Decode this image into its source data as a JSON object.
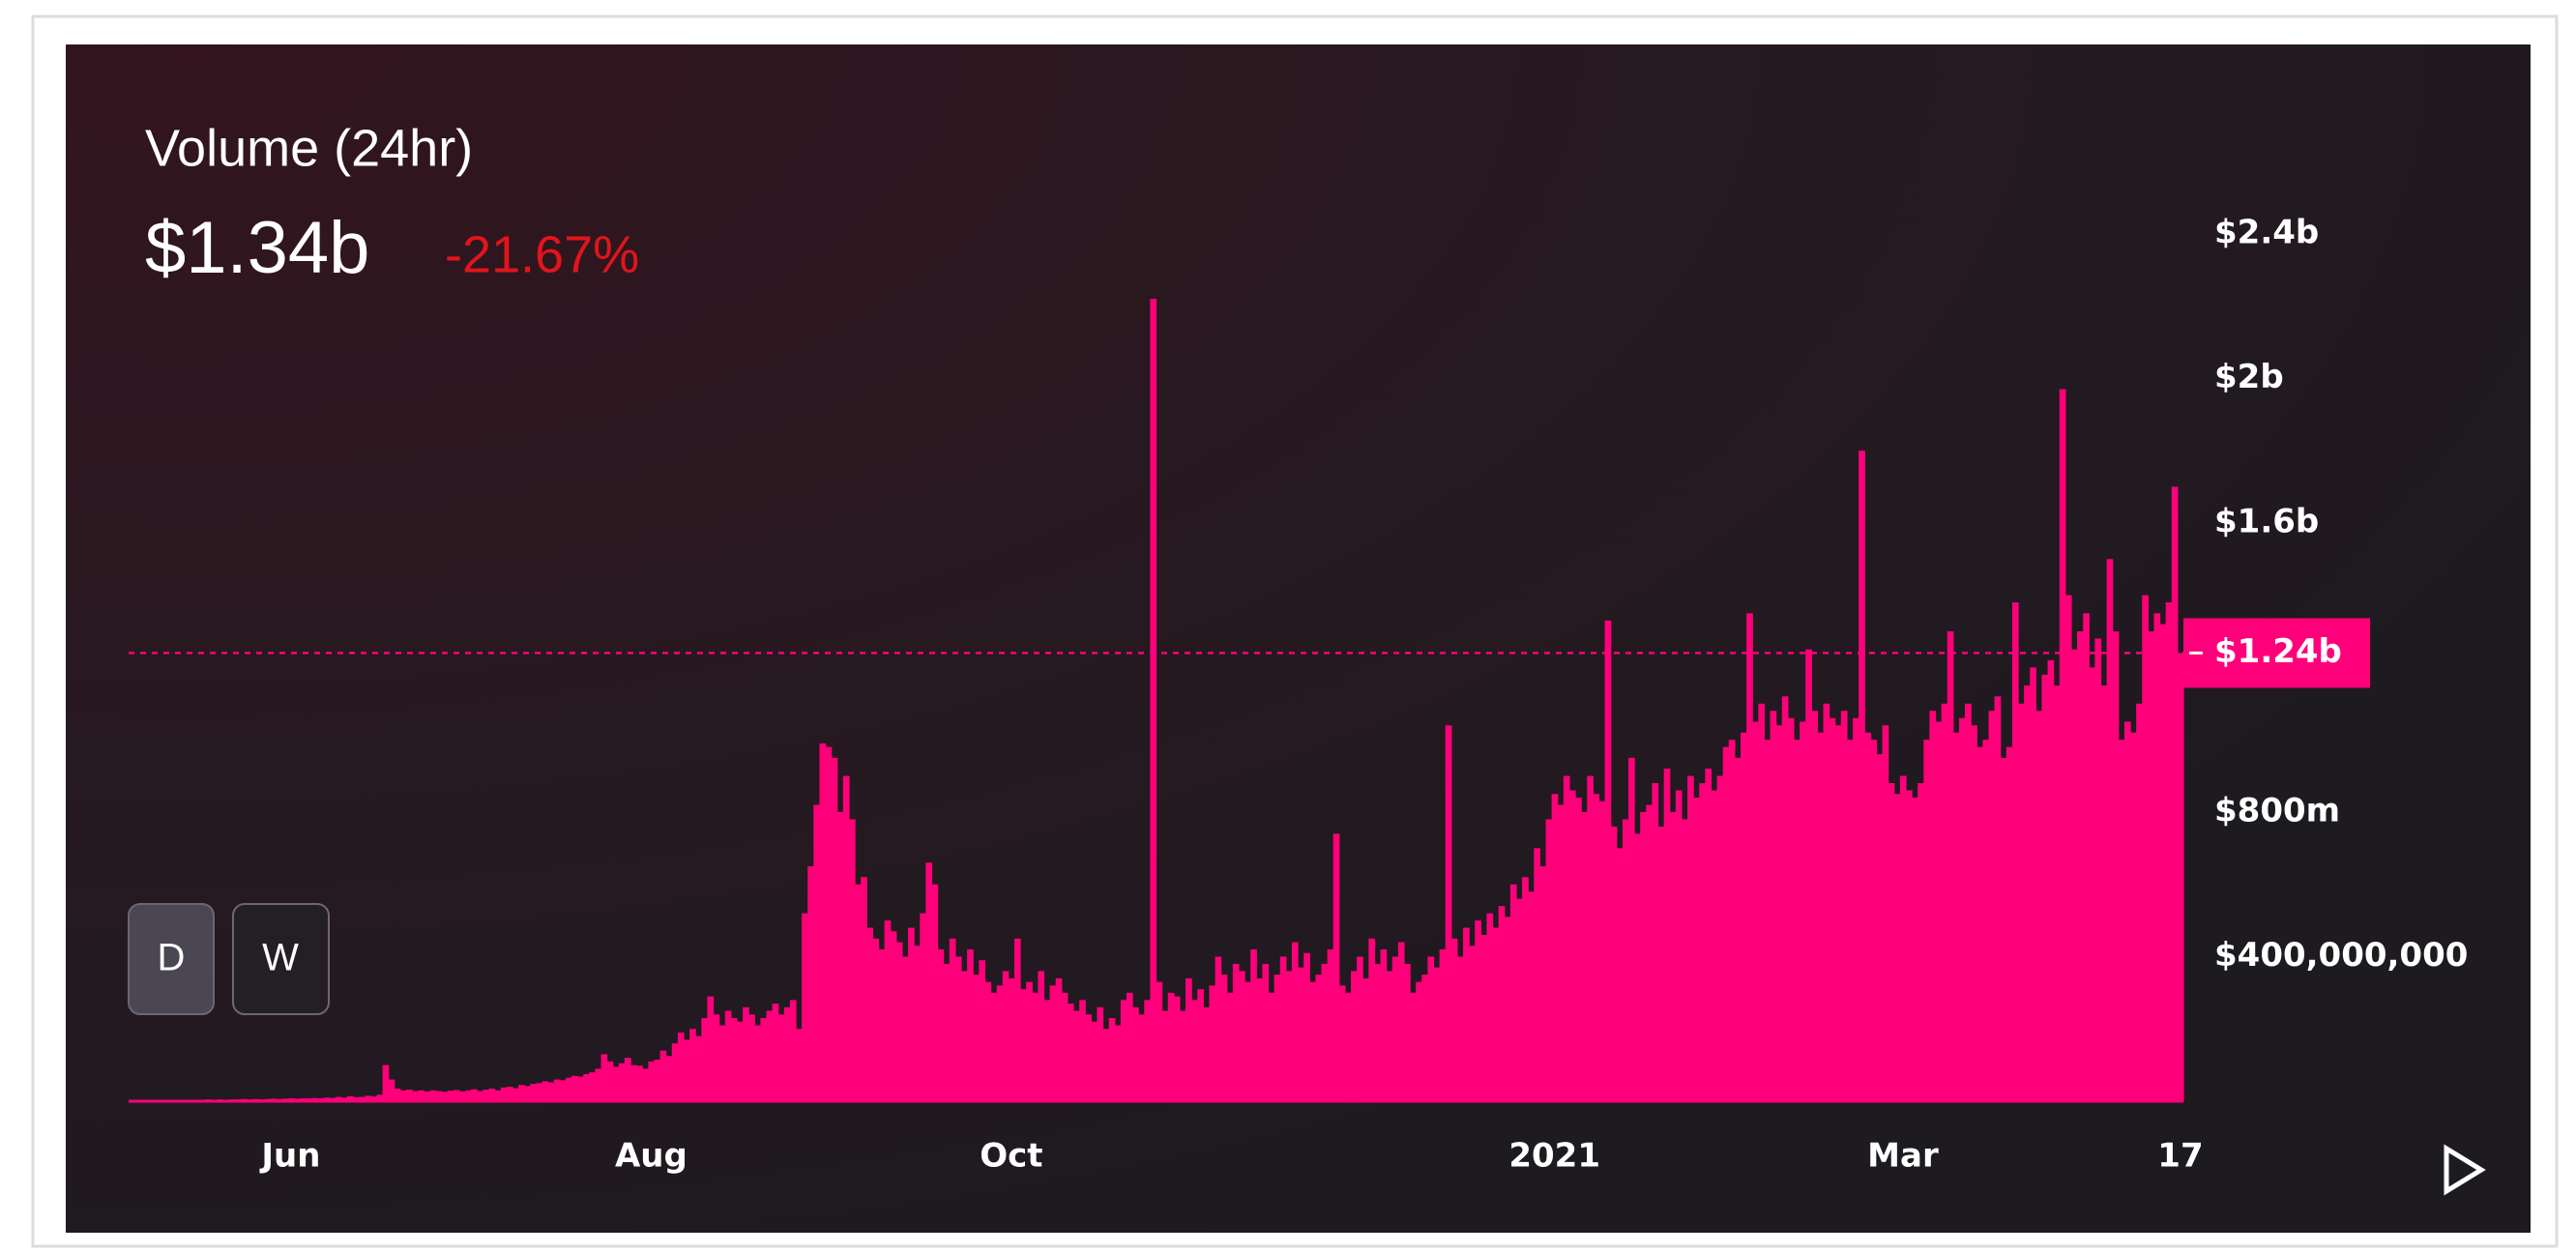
{
  "chart_data": {
    "type": "bar",
    "title": "Volume (24hr)",
    "current_value": "$1.34b",
    "change": "-21.67%",
    "color": "#ff007a",
    "ylim": [
      0,
      2600000000.0
    ],
    "yticks": [
      {
        "value": 400000000.0,
        "label": "$400,000,000"
      },
      {
        "value": 800000000.0,
        "label": "$800m"
      },
      {
        "value": 1600000000.0,
        "label": "$1.6b"
      },
      {
        "value": 2000000000.0,
        "label": "$2b"
      },
      {
        "value": 2400000000.0,
        "label": "$2.4b"
      }
    ],
    "xticks": [
      {
        "value": 27,
        "label": "Jun"
      },
      {
        "value": 88,
        "label": "Aug"
      },
      {
        "value": 149,
        "label": "Oct"
      },
      {
        "value": 241,
        "label": "2021"
      },
      {
        "value": 300,
        "label": "Mar"
      },
      {
        "value": 347,
        "label": "17"
      }
    ],
    "reference_line": {
      "value": 1240000000.0,
      "label": "$1.24b"
    },
    "buttons": [
      "D",
      "W"
    ],
    "values": [
      2000000.0,
      2000000.0,
      3000000.0,
      2000000.0,
      3000000.0,
      3000000.0,
      2000000.0,
      3000000.0,
      4000000.0,
      3000000.0,
      4000000.0,
      3000000.0,
      4000000.0,
      5000000.0,
      4000000.0,
      5000000.0,
      4000000.0,
      5000000.0,
      5000000.0,
      6000000.0,
      5000000.0,
      6000000.0,
      5000000.0,
      6000000.0,
      7000000.0,
      6000000.0,
      7000000.0,
      8000000.0,
      7000000.0,
      8000000.0,
      8000000.0,
      9000000.0,
      8000000.0,
      10000000.0,
      9000000.0,
      12000000.0,
      10000000.0,
      14000000.0,
      11000000.0,
      12000000.0,
      15000000.0,
      13000000.0,
      18000000.0,
      100000000.0,
      60000000.0,
      35000000.0,
      30000000.0,
      32000000.0,
      28000000.0,
      30000000.0,
      27000000.0,
      30000000.0,
      28000000.0,
      26000000.0,
      29000000.0,
      31000000.0,
      27000000.0,
      30000000.0,
      33000000.0,
      28000000.0,
      32000000.0,
      35000000.0,
      30000000.0,
      38000000.0,
      40000000.0,
      36000000.0,
      45000000.0,
      42000000.0,
      48000000.0,
      50000000.0,
      55000000.0,
      52000000.0,
      60000000.0,
      58000000.0,
      65000000.0,
      70000000.0,
      68000000.0,
      75000000.0,
      80000000.0,
      90000000.0,
      130000000.0,
      110000000.0,
      95000000.0,
      105000000.0,
      120000000.0,
      100000000.0,
      98000000.0,
      90000000.0,
      110000000.0,
      115000000.0,
      140000000.0,
      125000000.0,
      160000000.0,
      190000000.0,
      170000000.0,
      200000000.0,
      180000000.0,
      230000000.0,
      290000000.0,
      240000000.0,
      210000000.0,
      250000000.0,
      230000000.0,
      220000000.0,
      260000000.0,
      240000000.0,
      210000000.0,
      230000000.0,
      250000000.0,
      270000000.0,
      240000000.0,
      260000000.0,
      280000000.0,
      200000000.0,
      520000000.0,
      650000000.0,
      820000000.0,
      990000000.0,
      980000000.0,
      950000000.0,
      800000000.0,
      900000000.0,
      780000000.0,
      600000000.0,
      620000000.0,
      480000000.0,
      450000000.0,
      420000000.0,
      500000000.0,
      470000000.0,
      440000000.0,
      400000000.0,
      480000000.0,
      430000000.0,
      520000000.0,
      660000000.0,
      600000000.0,
      420000000.0,
      380000000.0,
      450000000.0,
      400000000.0,
      360000000.0,
      420000000.0,
      350000000.0,
      390000000.0,
      330000000.0,
      300000000.0,
      320000000.0,
      360000000.0,
      340000000.0,
      450000000.0,
      310000000.0,
      330000000.0,
      300000000.0,
      360000000.0,
      280000000.0,
      320000000.0,
      340000000.0,
      300000000.0,
      270000000.0,
      250000000.0,
      280000000.0,
      240000000.0,
      220000000.0,
      260000000.0,
      200000000.0,
      230000000.0,
      210000000.0,
      280000000.0,
      300000000.0,
      260000000.0,
      240000000.0,
      280000000.0,
      2220000000.0,
      330000000.0,
      250000000.0,
      300000000.0,
      290000000.0,
      250000000.0,
      340000000.0,
      280000000.0,
      310000000.0,
      260000000.0,
      320000000.0,
      400000000.0,
      350000000.0,
      300000000.0,
      380000000.0,
      360000000.0,
      330000000.0,
      420000000.0,
      340000000.0,
      380000000.0,
      300000000.0,
      350000000.0,
      400000000.0,
      360000000.0,
      440000000.0,
      370000000.0,
      410000000.0,
      330000000.0,
      350000000.0,
      380000000.0,
      420000000.0,
      740000000.0,
      320000000.0,
      300000000.0,
      360000000.0,
      400000000.0,
      340000000.0,
      450000000.0,
      380000000.0,
      420000000.0,
      360000000.0,
      400000000.0,
      440000000.0,
      380000000.0,
      300000000.0,
      330000000.0,
      350000000.0,
      400000000.0,
      370000000.0,
      420000000.0,
      1040000000.0,
      450000000.0,
      400000000.0,
      480000000.0,
      430000000.0,
      500000000.0,
      460000000.0,
      520000000.0,
      480000000.0,
      540000000.0,
      510000000.0,
      600000000.0,
      560000000.0,
      620000000.0,
      580000000.0,
      700000000.0,
      650000000.0,
      780000000.0,
      850000000.0,
      820000000.0,
      900000000.0,
      860000000.0,
      840000000.0,
      800000000.0,
      900000000.0,
      850000000.0,
      830000000.0,
      1330000000.0,
      760000000.0,
      700000000.0,
      780000000.0,
      950000000.0,
      740000000.0,
      800000000.0,
      820000000.0,
      880000000.0,
      760000000.0,
      920000000.0,
      800000000.0,
      860000000.0,
      780000000.0,
      900000000.0,
      840000000.0,
      880000000.0,
      920000000.0,
      860000000.0,
      900000000.0,
      980000000.0,
      1000000000.0,
      950000000.0,
      1020000000.0,
      1350000000.0,
      1050000000.0,
      1100000000.0,
      1000000000.0,
      1080000000.0,
      1040000000.0,
      1120000000.0,
      1060000000.0,
      1000000000.0,
      1050000000.0,
      1250000000.0,
      1080000000.0,
      1020000000.0,
      1100000000.0,
      1060000000.0,
      1040000000.0,
      1080000000.0,
      1000000000.0,
      1060000000.0,
      1800000000.0,
      1020000000.0,
      1000000000.0,
      960000000.0,
      1040000000.0,
      880000000.0,
      850000000.0,
      900000000.0,
      860000000.0,
      840000000.0,
      880000000.0,
      1000000000.0,
      1080000000.0,
      1050000000.0,
      1100000000.0,
      1300000000.0,
      1020000000.0,
      1060000000.0,
      1100000000.0,
      1040000000.0,
      980000000.0,
      1000000000.0,
      1080000000.0,
      1120000000.0,
      950000000.0,
      980000000.0,
      1380000000.0,
      1100000000.0,
      1150000000.0,
      1200000000.0,
      1080000000.0,
      1180000000.0,
      1220000000.0,
      1150000000.0,
      1970000000.0,
      1400000000.0,
      1250000000.0,
      1300000000.0,
      1350000000.0,
      1200000000.0,
      1280000000.0,
      1150000000.0,
      1500000000.0,
      1300000000.0,
      1000000000.0,
      1050000000.0,
      1020000000.0,
      1100000000.0,
      1400000000.0,
      1300000000.0,
      1350000000.0,
      1320000000.0,
      1380000000.0,
      1700000000.0,
      1240000000.0
    ]
  }
}
